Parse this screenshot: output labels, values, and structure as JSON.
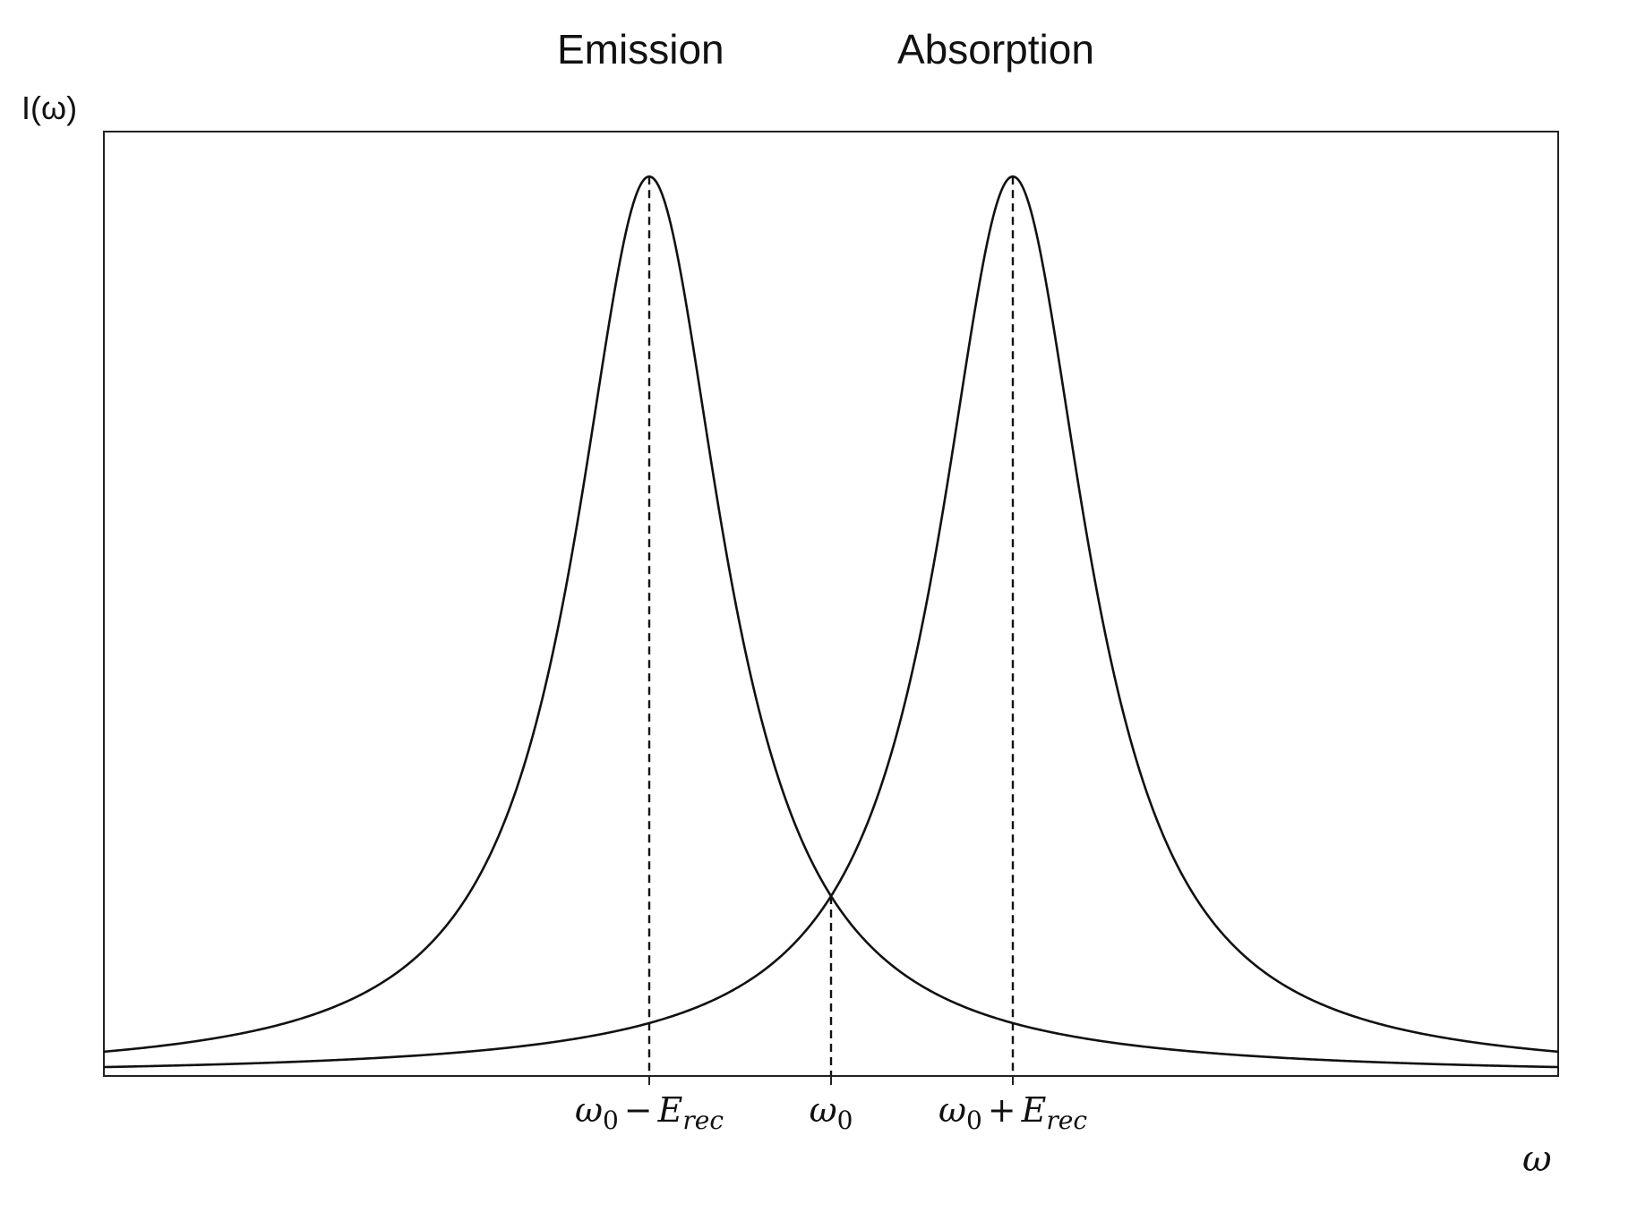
{
  "chart_data": {
    "type": "line",
    "title": "",
    "curve_titles": {
      "left": "Emission",
      "right": "Absorption"
    },
    "ylabel": "I(ω)",
    "xlabel": "ω",
    "x_ticks": [
      {
        "value": -1,
        "symbol": "ω",
        "sub": "0",
        "op": "−",
        "term": "E",
        "term_sub": "rec"
      },
      {
        "value": 0,
        "symbol": "ω",
        "sub": "0",
        "op": "",
        "term": "",
        "term_sub": ""
      },
      {
        "value": 1,
        "symbol": "ω",
        "sub": "0",
        "op": "+",
        "term": "E",
        "term_sub": "rec"
      }
    ],
    "xlim": [
      -4,
      4
    ],
    "ylim": [
      0,
      1.05
    ],
    "series": [
      {
        "shape": "lorentzian",
        "center": -1,
        "hwhm": 0.5,
        "peak": 1.0,
        "offset": 0.0
      },
      {
        "shape": "lorentzian",
        "center": 1,
        "hwhm": 0.5,
        "peak": 1.0,
        "offset": 0.0
      }
    ],
    "vlines": [
      {
        "x": -1,
        "style": "dashed"
      },
      {
        "x": 0,
        "style": "dashed"
      },
      {
        "x": 1,
        "style": "dashed"
      }
    ],
    "colors": {
      "line": "#111111",
      "frame": "#222222",
      "background": "#ffffff"
    },
    "grid": false,
    "legend": "none"
  }
}
